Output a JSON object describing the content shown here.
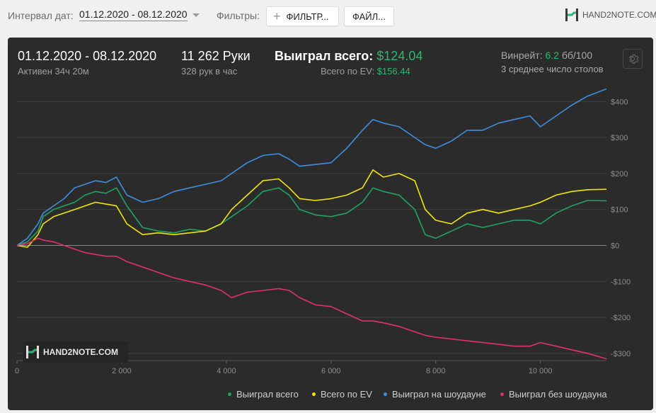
{
  "toolbar": {
    "date_label": "Интервал дат:",
    "date_range": "01.12.2020 - 08.12.2020",
    "filters_label": "Фильтры:",
    "filter_button": "ФИЛЬТР...",
    "file_button": "ФАЙЛ...",
    "brand": "HAND2NOTE.COM"
  },
  "summary": {
    "date_range": "01.12.2020 - 08.12.2020",
    "active": "Активен 34ч 20м",
    "hands": "11 262 Руки",
    "hands_per_hour": "328 рук в час",
    "won_label": "Выиграл всего:",
    "won_value": "$124.04",
    "ev_label": "Всего по EV:",
    "ev_value": "$156.44",
    "winrate_label": "Винрейт:",
    "winrate_value": "6.2",
    "winrate_unit": "бб/100",
    "tables": "3 среднее число столов"
  },
  "watermark": "HAND2NOTE.COM",
  "colors": {
    "won": "#1fa463",
    "ev": "#f2e600",
    "showdown": "#3e8ee0",
    "nonshowdown": "#e0326a",
    "accent": "#2bb673",
    "panel": "#2b2b2b"
  },
  "chart_data": {
    "type": "line",
    "xlabel": "",
    "ylabel": "",
    "xlim": [
      0,
      11262
    ],
    "ylim": [
      -320,
      440
    ],
    "x_ticks": [
      0,
      2000,
      4000,
      6000,
      8000,
      10000
    ],
    "x_tick_labels": [
      "0",
      "2 000",
      "4 000",
      "6 000",
      "8 000",
      "10 000"
    ],
    "y_ticks": [
      400,
      300,
      200,
      100,
      0,
      -100,
      -200,
      -300
    ],
    "y_tick_labels": [
      "$400",
      "$300",
      "$200",
      "$100",
      "$0",
      "-$100",
      "-$200",
      "-$300"
    ],
    "legend_position": "bottom-right",
    "grid": true,
    "series": [
      {
        "name": "Выиграл всего",
        "color_key": "won",
        "x": [
          0,
          200,
          400,
          500,
          700,
          900,
          1100,
          1300,
          1500,
          1700,
          1900,
          2100,
          2400,
          2700,
          3000,
          3300,
          3600,
          3900,
          4100,
          4400,
          4700,
          5000,
          5200,
          5400,
          5700,
          6000,
          6300,
          6600,
          6800,
          7000,
          7300,
          7600,
          7800,
          8000,
          8300,
          8600,
          8900,
          9200,
          9500,
          9800,
          10000,
          10300,
          10600,
          10900,
          11262
        ],
        "y": [
          0,
          10,
          40,
          80,
          100,
          110,
          120,
          140,
          150,
          145,
          160,
          110,
          50,
          40,
          35,
          45,
          40,
          60,
          80,
          110,
          150,
          160,
          140,
          100,
          85,
          80,
          90,
          120,
          160,
          150,
          140,
          100,
          30,
          20,
          40,
          60,
          50,
          60,
          70,
          70,
          60,
          90,
          110,
          125,
          124
        ]
      },
      {
        "name": "Всего по EV",
        "color_key": "ev",
        "x": [
          0,
          200,
          400,
          500,
          700,
          900,
          1100,
          1300,
          1500,
          1700,
          1900,
          2100,
          2400,
          2700,
          3000,
          3300,
          3600,
          3900,
          4100,
          4400,
          4700,
          5000,
          5200,
          5400,
          5700,
          6000,
          6300,
          6600,
          6800,
          7000,
          7300,
          7600,
          7800,
          8000,
          8300,
          8600,
          8900,
          9200,
          9500,
          9800,
          10000,
          10300,
          10600,
          10900,
          11262
        ],
        "y": [
          0,
          -5,
          30,
          60,
          80,
          90,
          100,
          110,
          120,
          115,
          110,
          60,
          30,
          35,
          30,
          35,
          40,
          60,
          100,
          140,
          180,
          185,
          160,
          130,
          125,
          130,
          140,
          160,
          210,
          190,
          200,
          180,
          100,
          70,
          60,
          90,
          100,
          90,
          100,
          110,
          120,
          140,
          150,
          155,
          156
        ]
      },
      {
        "name": "Выиграл на шоудауне",
        "color_key": "showdown",
        "x": [
          0,
          200,
          400,
          500,
          700,
          900,
          1100,
          1300,
          1500,
          1700,
          1900,
          2100,
          2400,
          2700,
          3000,
          3300,
          3600,
          3900,
          4100,
          4400,
          4700,
          5000,
          5200,
          5400,
          5700,
          6000,
          6300,
          6600,
          6800,
          7000,
          7300,
          7600,
          7800,
          8000,
          8300,
          8600,
          8900,
          9200,
          9500,
          9800,
          10000,
          10300,
          10600,
          10900,
          11262
        ],
        "y": [
          0,
          20,
          60,
          90,
          110,
          130,
          160,
          170,
          180,
          175,
          190,
          140,
          120,
          130,
          150,
          160,
          170,
          180,
          200,
          230,
          250,
          255,
          240,
          220,
          225,
          230,
          270,
          320,
          350,
          340,
          330,
          300,
          280,
          270,
          290,
          320,
          320,
          340,
          350,
          360,
          330,
          360,
          390,
          415,
          435
        ]
      },
      {
        "name": "Выиграл без шоудауна",
        "color_key": "nonshowdown",
        "x": [
          0,
          200,
          400,
          500,
          700,
          900,
          1100,
          1300,
          1500,
          1700,
          1900,
          2100,
          2400,
          2700,
          3000,
          3300,
          3600,
          3900,
          4100,
          4400,
          4700,
          5000,
          5200,
          5400,
          5700,
          6000,
          6300,
          6600,
          6800,
          7000,
          7300,
          7600,
          7800,
          8000,
          8300,
          8600,
          8900,
          9200,
          9500,
          9800,
          10000,
          10300,
          10600,
          10900,
          11262
        ],
        "y": [
          0,
          5,
          20,
          15,
          10,
          0,
          -10,
          -20,
          -25,
          -30,
          -30,
          -45,
          -60,
          -75,
          -90,
          -100,
          -110,
          -125,
          -145,
          -130,
          -125,
          -120,
          -125,
          -145,
          -165,
          -170,
          -190,
          -210,
          -210,
          -215,
          -225,
          -240,
          -250,
          -255,
          -260,
          -265,
          -270,
          -275,
          -280,
          -280,
          -270,
          -280,
          -290,
          -300,
          -315
        ]
      }
    ]
  }
}
